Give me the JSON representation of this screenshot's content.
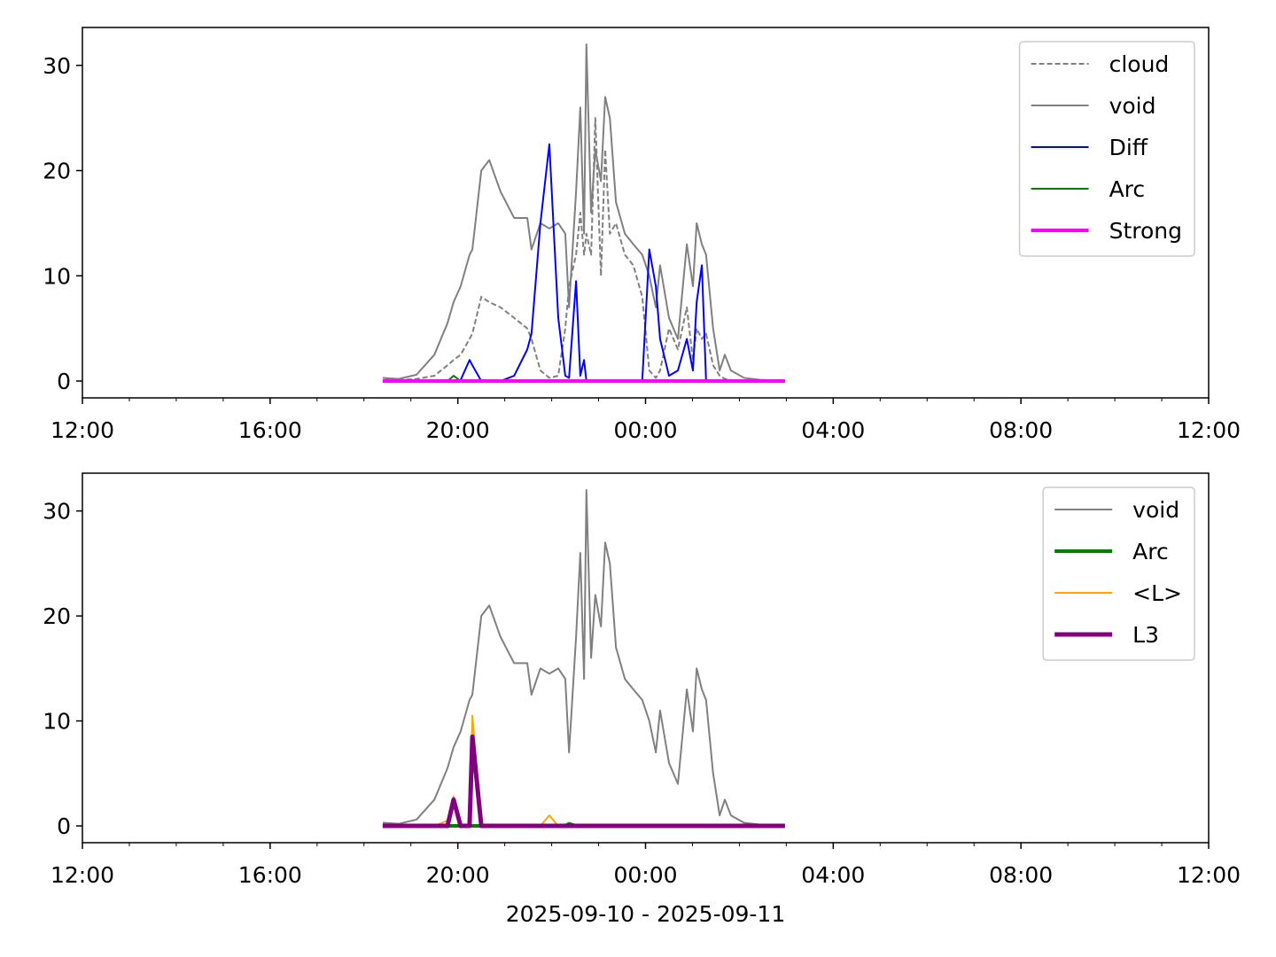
{
  "chart_data": [
    {
      "type": "line",
      "legend": "upper right",
      "x": [
        18.4,
        18.74,
        19.12,
        19.5,
        19.78,
        19.91,
        20.06,
        20.25,
        20.31,
        20.5,
        20.67,
        20.91,
        21.2,
        21.48,
        21.57,
        21.76,
        21.95,
        22.14,
        22.29,
        22.37,
        22.52,
        22.61,
        22.69,
        22.74,
        22.84,
        22.93,
        23.05,
        23.14,
        23.24,
        23.37,
        23.56,
        23.74,
        23.93,
        24.08,
        24.22,
        24.31,
        24.5,
        24.69,
        24.88,
        25.01,
        25.09,
        25.2,
        25.29,
        25.44,
        25.58,
        25.69,
        25.82,
        26.1,
        26.48,
        26.97
      ],
      "xlim": [
        12,
        36
      ],
      "xticks": [
        {
          "value": 12,
          "label": "12:00"
        },
        {
          "value": 16,
          "label": "16:00"
        },
        {
          "value": 20,
          "label": "20:00"
        },
        {
          "value": 24,
          "label": "00:00"
        },
        {
          "value": 28,
          "label": "04:00"
        },
        {
          "value": 32,
          "label": "08:00"
        },
        {
          "value": 36,
          "label": "12:00"
        }
      ],
      "xminorticks": [
        13,
        14,
        15,
        17,
        18,
        19,
        21,
        22,
        23,
        25,
        26,
        27,
        29,
        30,
        31,
        33,
        34,
        35
      ],
      "ylim": [
        -1.6,
        33.6
      ],
      "yticks": [
        0,
        10,
        20,
        30
      ],
      "series": [
        {
          "name": "cloud",
          "color": "#808080",
          "style": "dashed",
          "weight": "thin",
          "values": [
            0.3,
            0.1,
            0.2,
            0.5,
            1.5,
            2,
            2.5,
            4,
            4.5,
            8,
            7.5,
            7,
            6,
            5,
            4,
            1,
            0.3,
            0.5,
            5,
            9,
            12,
            16,
            12,
            14,
            12,
            25,
            10,
            22,
            14,
            15,
            12,
            11,
            8,
            1,
            0.3,
            1,
            5,
            3,
            7,
            2,
            5,
            4,
            4.5,
            1.5,
            0.5,
            0.2,
            0.1,
            0,
            0,
            0
          ]
        },
        {
          "name": "void",
          "color": "#808080",
          "style": "solid",
          "weight": "thin",
          "values": [
            0.3,
            0.2,
            0.6,
            2.5,
            5.5,
            7.5,
            9,
            12,
            12.5,
            20,
            21,
            18,
            15.5,
            15.5,
            12.5,
            15,
            14.5,
            15,
            14,
            7,
            18,
            26,
            14,
            32,
            16,
            22,
            19,
            27,
            25,
            17,
            14,
            13,
            12,
            10,
            7,
            11,
            6,
            4,
            13,
            9,
            15,
            13,
            12,
            5,
            1,
            2.5,
            1,
            0.3,
            0.1,
            0
          ]
        },
        {
          "name": "Diff",
          "color": "#0000ff",
          "style": "solid",
          "weight": "thin",
          "values": [
            0,
            0,
            0,
            0,
            0,
            0,
            0.1,
            2,
            1.5,
            0,
            0,
            0,
            0.5,
            3,
            4.5,
            15,
            22.5,
            6,
            0.5,
            0.3,
            9.5,
            0.5,
            2,
            0,
            0,
            0,
            0,
            0,
            0,
            0,
            0,
            0,
            0,
            12.5,
            9,
            4,
            0.5,
            1,
            4,
            1,
            7.5,
            11,
            0,
            0,
            0,
            0,
            0,
            0,
            0,
            0
          ]
        },
        {
          "name": "Arc",
          "color": "#008000",
          "style": "solid",
          "weight": "thin",
          "values": [
            0,
            0,
            0,
            0,
            0,
            0.5,
            0,
            0,
            0,
            0,
            0,
            0,
            0,
            0,
            0,
            0,
            0,
            0,
            0,
            0,
            0,
            0,
            0,
            0,
            0,
            0,
            0,
            0,
            0,
            0,
            0,
            0,
            0,
            0,
            0,
            0,
            0,
            0,
            0,
            0,
            0,
            0,
            0,
            0,
            0,
            0,
            0,
            0,
            0,
            0
          ]
        },
        {
          "name": "Strong",
          "color": "#ff00ff",
          "style": "solid",
          "weight": "thick",
          "values": [
            0,
            0,
            0,
            0,
            0,
            0,
            0,
            0,
            0,
            0,
            0,
            0,
            0,
            0,
            0,
            0,
            0,
            0,
            0,
            0,
            0,
            0,
            0,
            0,
            0,
            0,
            0,
            0,
            0,
            0,
            0,
            0,
            0,
            0,
            0,
            0,
            0,
            0,
            0,
            0,
            0,
            0,
            0,
            0,
            0,
            0,
            0,
            0,
            0,
            0
          ]
        }
      ]
    },
    {
      "type": "line",
      "legend": "upper right",
      "xlabel": "2025-09-10 - 2025-09-11",
      "x": [
        18.4,
        18.74,
        19.12,
        19.5,
        19.78,
        19.91,
        20.06,
        20.25,
        20.31,
        20.5,
        20.67,
        20.91,
        21.2,
        21.48,
        21.57,
        21.76,
        21.95,
        22.14,
        22.29,
        22.37,
        22.52,
        22.61,
        22.69,
        22.74,
        22.84,
        22.93,
        23.05,
        23.14,
        23.24,
        23.37,
        23.56,
        23.74,
        23.93,
        24.08,
        24.22,
        24.31,
        24.5,
        24.69,
        24.88,
        25.01,
        25.09,
        25.2,
        25.29,
        25.44,
        25.58,
        25.69,
        25.82,
        26.1,
        26.48,
        26.97
      ],
      "xlim": [
        12,
        36
      ],
      "xticks": [
        {
          "value": 12,
          "label": "12:00"
        },
        {
          "value": 16,
          "label": "16:00"
        },
        {
          "value": 20,
          "label": "20:00"
        },
        {
          "value": 24,
          "label": "00:00"
        },
        {
          "value": 28,
          "label": "04:00"
        },
        {
          "value": 32,
          "label": "08:00"
        },
        {
          "value": 36,
          "label": "12:00"
        }
      ],
      "xminorticks": [
        13,
        14,
        15,
        17,
        18,
        19,
        21,
        22,
        23,
        25,
        26,
        27,
        29,
        30,
        31,
        33,
        34,
        35
      ],
      "ylim": [
        -1.6,
        33.6
      ],
      "yticks": [
        0,
        10,
        20,
        30
      ],
      "series": [
        {
          "name": "void",
          "color": "#808080",
          "style": "solid",
          "weight": "thin",
          "values": [
            0.3,
            0.2,
            0.6,
            2.5,
            5.5,
            7.5,
            9,
            12,
            12.5,
            20,
            21,
            18,
            15.5,
            15.5,
            12.5,
            15,
            14.5,
            15,
            14,
            7,
            18,
            26,
            14,
            32,
            16,
            22,
            19,
            27,
            25,
            17,
            14,
            13,
            12,
            10,
            7,
            11,
            6,
            4,
            13,
            9,
            15,
            13,
            12,
            5,
            1,
            2.5,
            1,
            0.3,
            0.1,
            0
          ]
        },
        {
          "name": "Arc",
          "color": "#008000",
          "style": "solid",
          "weight": "thick",
          "values": [
            0,
            0,
            0,
            0,
            0,
            0,
            0,
            0,
            0,
            0,
            0,
            0,
            0,
            0,
            0,
            0,
            0,
            0,
            0,
            0.2,
            0,
            0,
            0,
            0,
            0,
            0,
            0,
            0,
            0,
            0,
            0,
            0,
            0,
            0,
            0,
            0,
            0,
            0,
            0,
            0,
            0,
            0,
            0,
            0,
            0,
            0,
            0,
            0,
            0,
            0
          ]
        },
        {
          "name": "<L>",
          "color": "#ffa500",
          "style": "solid",
          "weight": "thin",
          "values": [
            0,
            0,
            0,
            0,
            0.5,
            2.8,
            0,
            0,
            10.5,
            0,
            0,
            0,
            0,
            0,
            0,
            0,
            1,
            0,
            0,
            0,
            0,
            0,
            0,
            0,
            0,
            0,
            0,
            0,
            0,
            0,
            0,
            0,
            0,
            0,
            0,
            0,
            0,
            0,
            0,
            0,
            0,
            0,
            0,
            0,
            0,
            0,
            0,
            0,
            0,
            0
          ]
        },
        {
          "name": "L3",
          "color": "#800080",
          "style": "solid",
          "weight": "heavy",
          "values": [
            0,
            0,
            0,
            0,
            0,
            2.5,
            0,
            0,
            8.5,
            0,
            0,
            0,
            0,
            0,
            0,
            0,
            0,
            0,
            0,
            0,
            0,
            0,
            0,
            0,
            0,
            0,
            0,
            0,
            0,
            0,
            0,
            0,
            0,
            0,
            0,
            0,
            0,
            0,
            0,
            0,
            0,
            0,
            0,
            0,
            0,
            0,
            0,
            0,
            0,
            0
          ]
        }
      ]
    }
  ]
}
